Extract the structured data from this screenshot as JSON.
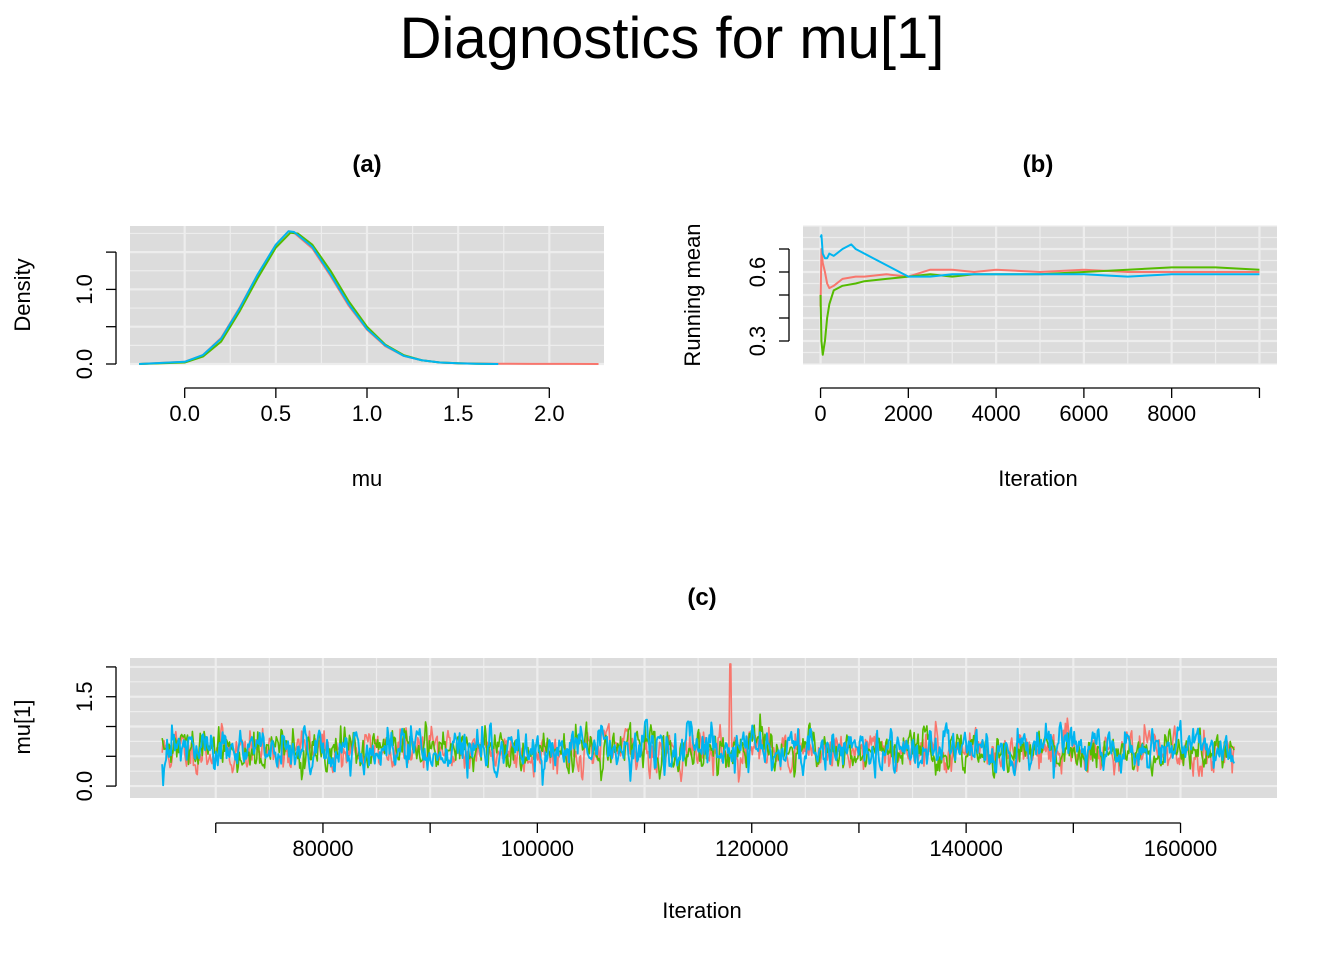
{
  "figure": {
    "title": "Diagnostics for mu[1]"
  },
  "colors": {
    "chain1": "#F8766D",
    "chain2": "#55BB00",
    "chain3": "#00B5F0",
    "panel_bg": "#DCDCDC",
    "grid": "#EDEDED"
  },
  "chart_data": [
    {
      "id": "a",
      "type": "line",
      "title": "(a)",
      "xlabel": "mu",
      "ylabel": "Density",
      "xlim": [
        -0.3,
        2.3
      ],
      "ylim": [
        0,
        1.85
      ],
      "x_ticks": [
        0.0,
        0.5,
        1.0,
        1.5,
        2.0
      ],
      "x_tick_labels": [
        "0.0",
        "0.5",
        "1.0",
        "1.5",
        "2.0"
      ],
      "y_ticks": [
        0.0,
        0.5,
        1.0,
        1.5
      ],
      "y_tick_labels": [
        "0.0",
        "",
        "1.0",
        ""
      ],
      "grid": true,
      "series": [
        {
          "color": "#F8766D",
          "x": [
            -0.25,
            0.0,
            0.1,
            0.2,
            0.3,
            0.4,
            0.5,
            0.57,
            0.6,
            0.7,
            0.8,
            0.9,
            1.0,
            1.1,
            1.2,
            1.3,
            1.4,
            1.5,
            1.7,
            1.9,
            2.1,
            2.27
          ],
          "y": [
            0.0,
            0.03,
            0.12,
            0.35,
            0.75,
            1.2,
            1.6,
            1.78,
            1.76,
            1.55,
            1.18,
            0.78,
            0.46,
            0.24,
            0.11,
            0.05,
            0.02,
            0.01,
            0.004,
            0.002,
            0.001,
            0.0
          ]
        },
        {
          "color": "#55BB00",
          "x": [
            -0.25,
            0.0,
            0.1,
            0.2,
            0.3,
            0.4,
            0.5,
            0.58,
            0.62,
            0.7,
            0.8,
            0.9,
            1.0,
            1.1,
            1.2,
            1.3,
            1.4,
            1.5,
            1.6,
            1.7
          ],
          "y": [
            0.0,
            0.02,
            0.1,
            0.3,
            0.7,
            1.15,
            1.56,
            1.76,
            1.75,
            1.6,
            1.25,
            0.84,
            0.5,
            0.26,
            0.12,
            0.05,
            0.02,
            0.01,
            0.004,
            0.0
          ]
        },
        {
          "color": "#00B5F0",
          "x": [
            -0.25,
            0.0,
            0.1,
            0.2,
            0.3,
            0.4,
            0.5,
            0.57,
            0.6,
            0.7,
            0.8,
            0.9,
            1.0,
            1.1,
            1.2,
            1.3,
            1.4,
            1.5,
            1.6,
            1.72
          ],
          "y": [
            0.0,
            0.03,
            0.12,
            0.34,
            0.74,
            1.2,
            1.6,
            1.78,
            1.77,
            1.57,
            1.2,
            0.8,
            0.47,
            0.25,
            0.11,
            0.05,
            0.02,
            0.01,
            0.004,
            0.0
          ]
        }
      ]
    },
    {
      "id": "b",
      "type": "line",
      "title": "(b)",
      "xlabel": "Iteration",
      "ylabel": "Running mean",
      "xlim": [
        -400,
        10400
      ],
      "ylim": [
        0.2,
        0.8
      ],
      "x_ticks": [
        0,
        2000,
        4000,
        6000,
        8000,
        10000
      ],
      "x_tick_labels": [
        "0",
        "2000",
        "4000",
        "6000",
        "8000",
        ""
      ],
      "y_ticks": [
        0.3,
        0.4,
        0.5,
        0.6,
        0.7
      ],
      "y_tick_labels": [
        "0.3",
        "",
        "",
        "0.6",
        ""
      ],
      "grid": true,
      "series": [
        {
          "color": "#F8766D",
          "x": [
            0,
            20,
            50,
            100,
            150,
            200,
            300,
            500,
            800,
            1000,
            1500,
            2000,
            2500,
            3000,
            3500,
            4000,
            5000,
            6000,
            7000,
            8000,
            9000,
            10000
          ],
          "y": [
            0.45,
            0.7,
            0.64,
            0.6,
            0.55,
            0.53,
            0.54,
            0.57,
            0.58,
            0.58,
            0.59,
            0.58,
            0.61,
            0.61,
            0.6,
            0.61,
            0.6,
            0.61,
            0.6,
            0.6,
            0.6,
            0.6
          ]
        },
        {
          "color": "#55BB00",
          "x": [
            0,
            20,
            50,
            100,
            150,
            200,
            300,
            500,
            800,
            1000,
            1500,
            2000,
            2500,
            3000,
            3500,
            4000,
            5000,
            6000,
            7000,
            8000,
            9000,
            10000
          ],
          "y": [
            0.5,
            0.3,
            0.24,
            0.3,
            0.4,
            0.46,
            0.52,
            0.54,
            0.55,
            0.56,
            0.57,
            0.58,
            0.59,
            0.58,
            0.59,
            0.59,
            0.59,
            0.6,
            0.61,
            0.62,
            0.62,
            0.61
          ]
        },
        {
          "color": "#00B5F0",
          "x": [
            0,
            20,
            50,
            100,
            150,
            200,
            300,
            500,
            700,
            800,
            1000,
            1200,
            1500,
            2000,
            2500,
            3000,
            4000,
            5000,
            6000,
            7000,
            8000,
            9000,
            10000
          ],
          "y": [
            0.75,
            0.76,
            0.68,
            0.66,
            0.66,
            0.68,
            0.67,
            0.7,
            0.72,
            0.7,
            0.68,
            0.66,
            0.63,
            0.58,
            0.58,
            0.59,
            0.59,
            0.59,
            0.59,
            0.58,
            0.59,
            0.59,
            0.59
          ]
        }
      ]
    },
    {
      "id": "c",
      "type": "line",
      "title": "(c)",
      "xlabel": "Iteration",
      "ylabel": "mu[1]",
      "xlim": [
        62000,
        169000
      ],
      "ylim": [
        -0.2,
        2.15
      ],
      "x_ticks": [
        70000,
        80000,
        90000,
        100000,
        110000,
        120000,
        130000,
        140000,
        150000,
        160000
      ],
      "x_tick_labels": [
        "",
        "80000",
        "",
        "100000",
        "",
        "120000",
        "",
        "140000",
        "",
        "160000"
      ],
      "y_ticks": [
        0.0,
        0.5,
        1.0,
        1.5,
        2.0
      ],
      "y_tick_labels": [
        "0.0",
        "",
        "",
        "1.5",
        ""
      ],
      "grid": true,
      "trace": {
        "start": 65001,
        "end": 165000,
        "mean": 0.6,
        "sd": 0.24,
        "points_per_chain": 1100,
        "peak_iteration": 118000,
        "peak_value": 2.05
      },
      "series": [
        {
          "color": "#F8766D"
        },
        {
          "color": "#55BB00"
        },
        {
          "color": "#00B5F0"
        }
      ]
    }
  ]
}
